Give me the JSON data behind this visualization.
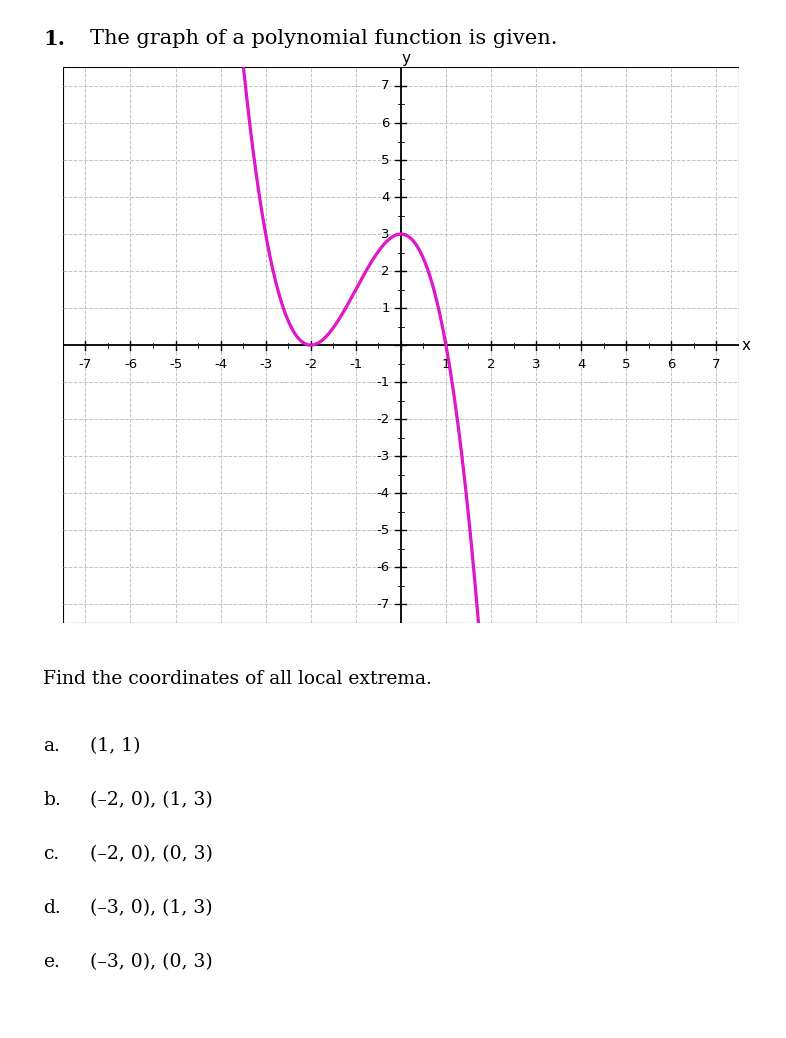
{
  "title": "The graph of a polynomial function is given.",
  "question_number": "1.",
  "find_text": "Find the coordinates of all local extrema.",
  "choices": [
    {
      "label": "a.",
      "text": "(1, 1)"
    },
    {
      "label": "b.",
      "text": "(–2, 0), (1, 3)"
    },
    {
      "label": "c.",
      "text": "(–2, 0), (0, 3)"
    },
    {
      "label": "d.",
      "text": "(–3, 0), (1, 3)"
    },
    {
      "label": "e.",
      "text": "(–3, 0), (0, 3)"
    }
  ],
  "xmin": -7,
  "xmax": 7,
  "ymin": -7,
  "ymax": 7,
  "curve_color": "#FF00BB",
  "grid_color": "#BBBBBB",
  "axis_color": "#000000",
  "background_color": "#FFFFFF",
  "x_plot_min": -5.55,
  "x_plot_max": 2.38
}
